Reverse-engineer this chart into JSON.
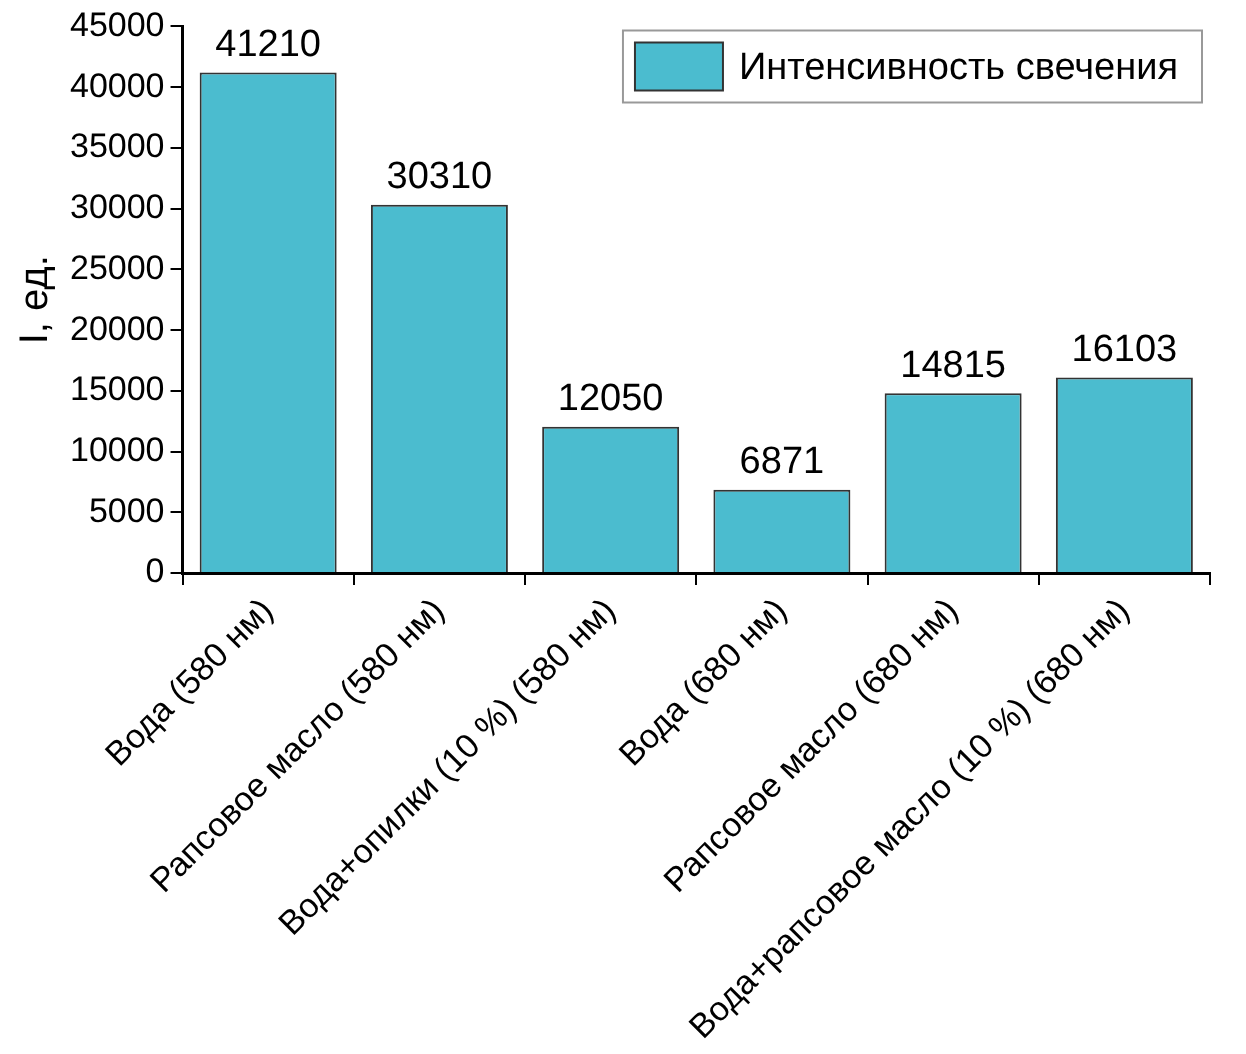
{
  "chart_data": {
    "type": "bar",
    "ylabel": "I, ед.",
    "categories": [
      "Вода (580 нм)",
      "Рапсовое масло (580 нм)",
      "Вода+опилки (10 %) (580 нм)",
      "Вода (680 нм)",
      "Рапсовое масло (680 нм)",
      "Вода+рапсовое масло (10 %) (680 нм)"
    ],
    "series": [
      {
        "name": "Интенсивность свечения",
        "color": "#4bbccf",
        "values": [
          41210,
          30310,
          12050,
          6871,
          14815,
          16103
        ]
      }
    ],
    "ylim": [
      0,
      45000
    ],
    "yticks": [
      0,
      5000,
      10000,
      15000,
      20000,
      25000,
      30000,
      35000,
      40000,
      45000
    ],
    "data_labels": true,
    "legend": "top right",
    "grid": false
  }
}
